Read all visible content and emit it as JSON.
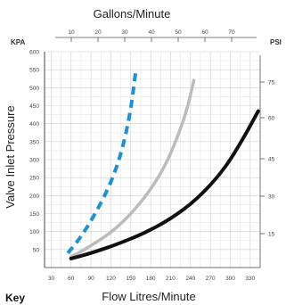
{
  "chart_data": {
    "type": "line",
    "top_axis_title": "Gallons/Minute",
    "top_ticks": [
      "10",
      "20",
      "30",
      "40",
      "50",
      "60",
      "70"
    ],
    "xlabel": "Flow Litres/Minute",
    "x_ticks": [
      "30",
      "60",
      "90",
      "120",
      "150",
      "180",
      "210",
      "240",
      "270",
      "300",
      "330"
    ],
    "x_range": [
      20,
      345
    ],
    "ylabel": "Valve Inlet Pressure",
    "left_unit": "KPA",
    "y_ticks": [
      "600",
      "550",
      "500",
      "450",
      "400",
      "350",
      "300",
      "250",
      "200",
      "150",
      "100",
      "50"
    ],
    "y_range": [
      0,
      600
    ],
    "right_unit": "PSI",
    "right_ticks": [
      "75",
      "60",
      "45",
      "30",
      "15"
    ],
    "grid": true,
    "key_label": "Key",
    "series": [
      {
        "color": "#1e90d6",
        "style": "dashed",
        "points": [
          [
            55,
            40
          ],
          [
            75,
            85
          ],
          [
            95,
            145
          ],
          [
            115,
            215
          ],
          [
            130,
            285
          ],
          [
            140,
            350
          ],
          [
            148,
            420
          ],
          [
            153,
            480
          ],
          [
            157,
            540
          ]
        ]
      },
      {
        "color": "#bbbbbb",
        "style": "solid",
        "points": [
          [
            60,
            30
          ],
          [
            90,
            60
          ],
          [
            130,
            110
          ],
          [
            170,
            190
          ],
          [
            200,
            275
          ],
          [
            220,
            360
          ],
          [
            235,
            440
          ],
          [
            245,
            520
          ]
        ]
      },
      {
        "color": "#111111",
        "style": "solid",
        "points": [
          [
            60,
            25
          ],
          [
            90,
            40
          ],
          [
            130,
            65
          ],
          [
            170,
            95
          ],
          [
            210,
            135
          ],
          [
            250,
            190
          ],
          [
            290,
            270
          ],
          [
            320,
            360
          ],
          [
            342,
            435
          ]
        ]
      }
    ]
  }
}
